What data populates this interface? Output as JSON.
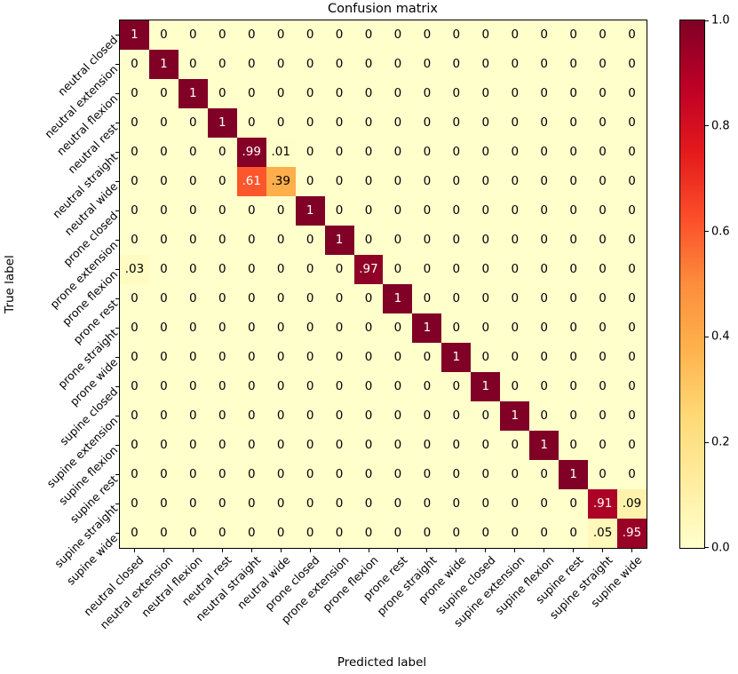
{
  "chart_data": {
    "type": "heatmap",
    "title": "Confusion matrix",
    "xlabel": "Predicted label",
    "ylabel": "True label",
    "x_categories": [
      "neutral closed",
      "neutral extension",
      "neutral flexion",
      "neutral rest",
      "neutral straight",
      "neutral wide",
      "prone closed",
      "prone extension",
      "prone flexion",
      "prone rest",
      "prone straight",
      "prone wide",
      "supine closed",
      "supine extension",
      "supine flexion",
      "supine rest",
      "supine straight",
      "supine wide"
    ],
    "y_categories": [
      "neutral closed",
      "neutral extension",
      "neutral flexion",
      "neutral rest",
      "neutral straight",
      "neutral wide",
      "prone closed",
      "prone extension",
      "prone flexion",
      "prone rest",
      "prone straight",
      "prone wide",
      "supine closed",
      "supine extension",
      "supine flexion",
      "supine rest",
      "supine straight",
      "supine wide"
    ],
    "matrix": [
      [
        1,
        0,
        0,
        0,
        0,
        0,
        0,
        0,
        0,
        0,
        0,
        0,
        0,
        0,
        0,
        0,
        0,
        0
      ],
      [
        0,
        1,
        0,
        0,
        0,
        0,
        0,
        0,
        0,
        0,
        0,
        0,
        0,
        0,
        0,
        0,
        0,
        0
      ],
      [
        0,
        0,
        1,
        0,
        0,
        0,
        0,
        0,
        0,
        0,
        0,
        0,
        0,
        0,
        0,
        0,
        0,
        0
      ],
      [
        0,
        0,
        0,
        1,
        0,
        0,
        0,
        0,
        0,
        0,
        0,
        0,
        0,
        0,
        0,
        0,
        0,
        0
      ],
      [
        0,
        0,
        0,
        0,
        0.99,
        0.01,
        0,
        0,
        0,
        0,
        0,
        0,
        0,
        0,
        0,
        0,
        0,
        0
      ],
      [
        0,
        0,
        0,
        0,
        0.61,
        0.39,
        0,
        0,
        0,
        0,
        0,
        0,
        0,
        0,
        0,
        0,
        0,
        0
      ],
      [
        0,
        0,
        0,
        0,
        0,
        0,
        1,
        0,
        0,
        0,
        0,
        0,
        0,
        0,
        0,
        0,
        0,
        0
      ],
      [
        0,
        0,
        0,
        0,
        0,
        0,
        0,
        1,
        0,
        0,
        0,
        0,
        0,
        0,
        0,
        0,
        0,
        0
      ],
      [
        0.03,
        0,
        0,
        0,
        0,
        0,
        0,
        0,
        0.97,
        0,
        0,
        0,
        0,
        0,
        0,
        0,
        0,
        0
      ],
      [
        0,
        0,
        0,
        0,
        0,
        0,
        0,
        0,
        0,
        1,
        0,
        0,
        0,
        0,
        0,
        0,
        0,
        0
      ],
      [
        0,
        0,
        0,
        0,
        0,
        0,
        0,
        0,
        0,
        0,
        1,
        0,
        0,
        0,
        0,
        0,
        0,
        0
      ],
      [
        0,
        0,
        0,
        0,
        0,
        0,
        0,
        0,
        0,
        0,
        0,
        1,
        0,
        0,
        0,
        0,
        0,
        0
      ],
      [
        0,
        0,
        0,
        0,
        0,
        0,
        0,
        0,
        0,
        0,
        0,
        0,
        1,
        0,
        0,
        0,
        0,
        0
      ],
      [
        0,
        0,
        0,
        0,
        0,
        0,
        0,
        0,
        0,
        0,
        0,
        0,
        0,
        1,
        0,
        0,
        0,
        0
      ],
      [
        0,
        0,
        0,
        0,
        0,
        0,
        0,
        0,
        0,
        0,
        0,
        0,
        0,
        0,
        1,
        0,
        0,
        0
      ],
      [
        0,
        0,
        0,
        0,
        0,
        0,
        0,
        0,
        0,
        0,
        0,
        0,
        0,
        0,
        0,
        1,
        0,
        0
      ],
      [
        0,
        0,
        0,
        0,
        0,
        0,
        0,
        0,
        0,
        0,
        0,
        0,
        0,
        0,
        0,
        0,
        0.91,
        0.09
      ],
      [
        0,
        0,
        0,
        0,
        0,
        0,
        0,
        0,
        0,
        0,
        0,
        0,
        0,
        0,
        0,
        0,
        0.05,
        0.95
      ]
    ],
    "vmin": 0,
    "vmax": 1,
    "colormap_name": "YlOrRd",
    "colormap_anchors": [
      "#ffffcc",
      "#ffeda0",
      "#fed976",
      "#feb24c",
      "#fd8d3c",
      "#fc4e2a",
      "#e31a1c",
      "#bd0026",
      "#800026"
    ],
    "colorbar_position": "right",
    "colorbar_tick_values": [
      1.0,
      0.8,
      0.6,
      0.4,
      0.2,
      0.0
    ],
    "colorbar_tick_labels": [
      "1.0",
      "0.8",
      "0.6",
      "0.4",
      "0.2",
      "0.0"
    ],
    "text_color_threshold": 0.5,
    "cell_text_colors": {
      "high": "#ffffff",
      "low": "#000000"
    },
    "grid": false,
    "legend_position": "right-colorbar"
  }
}
